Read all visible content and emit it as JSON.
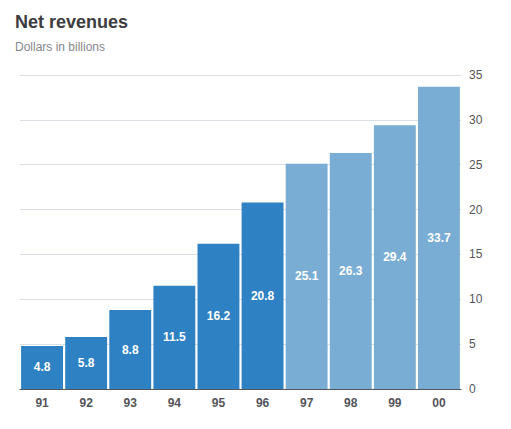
{
  "chart_data": {
    "type": "bar",
    "title": "Net revenues",
    "subtitle": "Dollars in billions",
    "categories": [
      "91",
      "92",
      "93",
      "94",
      "95",
      "96",
      "97",
      "98",
      "99",
      "00"
    ],
    "values": [
      4.8,
      5.8,
      8.8,
      11.5,
      16.2,
      20.8,
      25.1,
      26.3,
      29.4,
      33.7
    ],
    "colors": [
      "#2e82c3",
      "#2e82c3",
      "#2e82c3",
      "#2e82c3",
      "#2e82c3",
      "#2e82c3",
      "#7aadd4",
      "#7aadd4",
      "#7aadd4",
      "#7aadd4"
    ],
    "ylim": [
      0,
      35
    ],
    "yticks": [
      0,
      5,
      10,
      15,
      20,
      25,
      30,
      35
    ],
    "grid": true,
    "data_labels": true
  }
}
